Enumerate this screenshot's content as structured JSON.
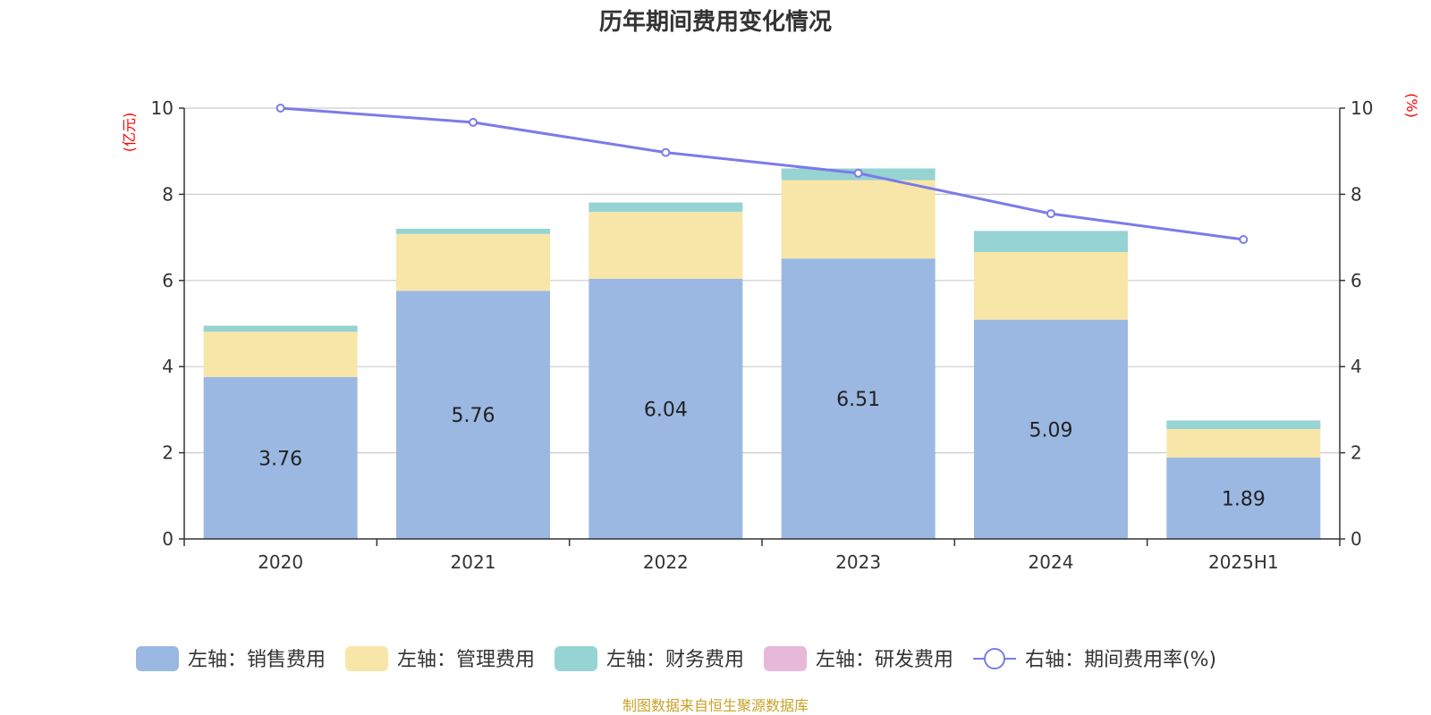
{
  "chart_data": {
    "type": "bar",
    "title": "历年期间费用变化情况",
    "categories": [
      "2020",
      "2021",
      "2022",
      "2023",
      "2024",
      "2025H1"
    ],
    "y_left": {
      "label": "(亿元)",
      "range": [
        0,
        10
      ],
      "ticks": [
        0,
        2,
        4,
        6,
        8,
        10
      ]
    },
    "y_right": {
      "label": "(%)",
      "range": [
        0,
        10
      ],
      "ticks": [
        0,
        2,
        4,
        6,
        8,
        10
      ]
    },
    "grid": true,
    "legend_position": "bottom",
    "series": [
      {
        "name": "左轴：销售费用",
        "type": "bar",
        "axis": "left",
        "stack": true,
        "color": "#9bb8e2",
        "values": [
          3.76,
          5.76,
          6.04,
          6.51,
          5.09,
          1.89
        ],
        "show_labels": true
      },
      {
        "name": "左轴：管理费用",
        "type": "bar",
        "axis": "left",
        "stack": true,
        "color": "#f8e6a8",
        "values": [
          1.05,
          1.32,
          1.55,
          1.82,
          1.57,
          0.66
        ]
      },
      {
        "name": "左轴：财务费用",
        "type": "bar",
        "axis": "left",
        "stack": true,
        "color": "#96d3d3",
        "values": [
          0.14,
          0.12,
          0.22,
          0.27,
          0.49,
          0.2
        ]
      },
      {
        "name": "左轴：研发费用",
        "type": "bar",
        "axis": "left",
        "stack": true,
        "color": "#e8b8d8",
        "values": [
          0,
          0,
          0,
          0,
          0,
          0
        ]
      },
      {
        "name": "右轴：期间费用率(%)",
        "type": "line",
        "axis": "right",
        "color": "#7b7be8",
        "values": [
          10.0,
          9.67,
          8.97,
          8.49,
          7.55,
          6.95
        ]
      }
    ]
  },
  "source": "制图数据来自恒生聚源数据库"
}
